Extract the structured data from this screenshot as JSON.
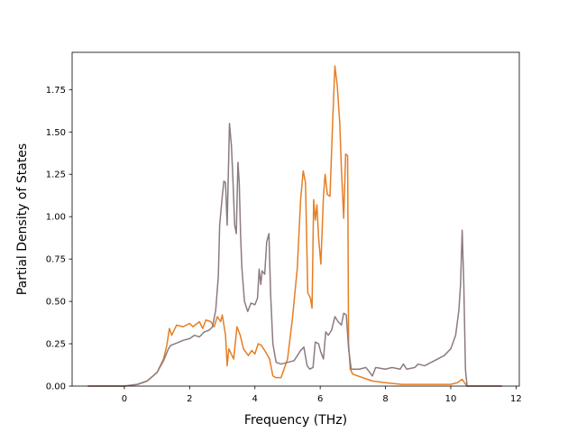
{
  "chart_data": {
    "type": "line",
    "title": "",
    "xlabel": "Frequency (THz)",
    "ylabel": "Partial Density of States",
    "xlim": [
      -1.6,
      12.1
    ],
    "ylim": [
      0.0,
      1.97
    ],
    "xticks": [
      0,
      2,
      4,
      6,
      8,
      10,
      12
    ],
    "yticks": [
      0.0,
      0.25,
      0.5,
      0.75,
      1.0,
      1.25,
      1.5,
      1.75
    ],
    "xtick_labels": [
      "0",
      "2",
      "4",
      "6",
      "8",
      "10",
      "12"
    ],
    "ytick_labels": [
      "0.00",
      "0.25",
      "0.50",
      "0.75",
      "1.00",
      "1.25",
      "1.50",
      "1.75"
    ],
    "grid": false,
    "legend": "none",
    "series": [
      {
        "color": "#e67e22",
        "points": [
          [
            -1.1,
            0.0
          ],
          [
            -0.2,
            0.0
          ],
          [
            0.0,
            0.0
          ],
          [
            0.4,
            0.01
          ],
          [
            0.7,
            0.03
          ],
          [
            1.0,
            0.08
          ],
          [
            1.2,
            0.16
          ],
          [
            1.3,
            0.24
          ],
          [
            1.38,
            0.34
          ],
          [
            1.45,
            0.3
          ],
          [
            1.6,
            0.36
          ],
          [
            1.8,
            0.35
          ],
          [
            2.0,
            0.37
          ],
          [
            2.1,
            0.35
          ],
          [
            2.3,
            0.38
          ],
          [
            2.4,
            0.34
          ],
          [
            2.5,
            0.39
          ],
          [
            2.65,
            0.38
          ],
          [
            2.75,
            0.35
          ],
          [
            2.85,
            0.41
          ],
          [
            2.95,
            0.38
          ],
          [
            3.0,
            0.42
          ],
          [
            3.1,
            0.3
          ],
          [
            3.15,
            0.12
          ],
          [
            3.2,
            0.22
          ],
          [
            3.35,
            0.16
          ],
          [
            3.45,
            0.35
          ],
          [
            3.55,
            0.3
          ],
          [
            3.65,
            0.22
          ],
          [
            3.8,
            0.18
          ],
          [
            3.9,
            0.21
          ],
          [
            4.0,
            0.19
          ],
          [
            4.1,
            0.25
          ],
          [
            4.2,
            0.24
          ],
          [
            4.3,
            0.21
          ],
          [
            4.45,
            0.16
          ],
          [
            4.55,
            0.06
          ],
          [
            4.65,
            0.05
          ],
          [
            4.8,
            0.05
          ],
          [
            5.0,
            0.16
          ],
          [
            5.15,
            0.4
          ],
          [
            5.3,
            0.7
          ],
          [
            5.4,
            1.1
          ],
          [
            5.48,
            1.27
          ],
          [
            5.55,
            1.2
          ],
          [
            5.62,
            0.55
          ],
          [
            5.7,
            0.52
          ],
          [
            5.75,
            0.46
          ],
          [
            5.8,
            1.1
          ],
          [
            5.85,
            0.98
          ],
          [
            5.9,
            1.07
          ],
          [
            5.95,
            0.88
          ],
          [
            6.02,
            0.72
          ],
          [
            6.1,
            1.12
          ],
          [
            6.15,
            1.25
          ],
          [
            6.22,
            1.13
          ],
          [
            6.3,
            1.12
          ],
          [
            6.38,
            1.55
          ],
          [
            6.45,
            1.89
          ],
          [
            6.52,
            1.78
          ],
          [
            6.6,
            1.55
          ],
          [
            6.65,
            1.28
          ],
          [
            6.72,
            0.99
          ],
          [
            6.78,
            1.37
          ],
          [
            6.84,
            1.36
          ],
          [
            6.87,
            0.25
          ],
          [
            6.92,
            0.1
          ],
          [
            7.0,
            0.07
          ],
          [
            7.3,
            0.05
          ],
          [
            7.6,
            0.03
          ],
          [
            8.0,
            0.02
          ],
          [
            8.5,
            0.01
          ],
          [
            9.0,
            0.01
          ],
          [
            9.5,
            0.01
          ],
          [
            10.0,
            0.01
          ],
          [
            10.2,
            0.02
          ],
          [
            10.35,
            0.04
          ],
          [
            10.42,
            0.02
          ],
          [
            10.5,
            0.0
          ],
          [
            11.55,
            0.0
          ]
        ]
      },
      {
        "color": "#8c7b80",
        "points": [
          [
            -1.1,
            0.0
          ],
          [
            -0.2,
            0.0
          ],
          [
            0.0,
            0.0
          ],
          [
            0.4,
            0.01
          ],
          [
            0.7,
            0.03
          ],
          [
            1.0,
            0.08
          ],
          [
            1.2,
            0.15
          ],
          [
            1.35,
            0.22
          ],
          [
            1.42,
            0.24
          ],
          [
            1.55,
            0.25
          ],
          [
            1.8,
            0.27
          ],
          [
            2.0,
            0.28
          ],
          [
            2.15,
            0.3
          ],
          [
            2.3,
            0.29
          ],
          [
            2.45,
            0.32
          ],
          [
            2.6,
            0.33
          ],
          [
            2.7,
            0.35
          ],
          [
            2.8,
            0.45
          ],
          [
            2.88,
            0.65
          ],
          [
            2.92,
            0.95
          ],
          [
            3.0,
            1.12
          ],
          [
            3.05,
            1.21
          ],
          [
            3.1,
            1.2
          ],
          [
            3.15,
            0.95
          ],
          [
            3.22,
            1.55
          ],
          [
            3.28,
            1.42
          ],
          [
            3.32,
            1.25
          ],
          [
            3.38,
            0.95
          ],
          [
            3.43,
            0.9
          ],
          [
            3.48,
            1.32
          ],
          [
            3.52,
            1.2
          ],
          [
            3.56,
            0.9
          ],
          [
            3.6,
            0.7
          ],
          [
            3.68,
            0.5
          ],
          [
            3.78,
            0.44
          ],
          [
            3.88,
            0.49
          ],
          [
            4.0,
            0.48
          ],
          [
            4.08,
            0.52
          ],
          [
            4.13,
            0.69
          ],
          [
            4.18,
            0.6
          ],
          [
            4.22,
            0.68
          ],
          [
            4.3,
            0.66
          ],
          [
            4.36,
            0.85
          ],
          [
            4.43,
            0.9
          ],
          [
            4.48,
            0.55
          ],
          [
            4.55,
            0.25
          ],
          [
            4.65,
            0.14
          ],
          [
            4.8,
            0.13
          ],
          [
            5.0,
            0.14
          ],
          [
            5.2,
            0.15
          ],
          [
            5.4,
            0.21
          ],
          [
            5.5,
            0.23
          ],
          [
            5.6,
            0.12
          ],
          [
            5.68,
            0.1
          ],
          [
            5.78,
            0.11
          ],
          [
            5.85,
            0.26
          ],
          [
            5.95,
            0.25
          ],
          [
            6.02,
            0.2
          ],
          [
            6.1,
            0.16
          ],
          [
            6.17,
            0.32
          ],
          [
            6.25,
            0.3
          ],
          [
            6.35,
            0.33
          ],
          [
            6.45,
            0.41
          ],
          [
            6.55,
            0.38
          ],
          [
            6.65,
            0.36
          ],
          [
            6.72,
            0.43
          ],
          [
            6.8,
            0.42
          ],
          [
            6.87,
            0.22
          ],
          [
            6.95,
            0.1
          ],
          [
            7.2,
            0.1
          ],
          [
            7.4,
            0.11
          ],
          [
            7.6,
            0.06
          ],
          [
            7.7,
            0.11
          ],
          [
            8.0,
            0.1
          ],
          [
            8.2,
            0.11
          ],
          [
            8.45,
            0.1
          ],
          [
            8.55,
            0.13
          ],
          [
            8.65,
            0.1
          ],
          [
            8.9,
            0.11
          ],
          [
            9.0,
            0.13
          ],
          [
            9.2,
            0.12
          ],
          [
            9.5,
            0.15
          ],
          [
            9.8,
            0.18
          ],
          [
            10.0,
            0.22
          ],
          [
            10.15,
            0.3
          ],
          [
            10.25,
            0.45
          ],
          [
            10.3,
            0.6
          ],
          [
            10.35,
            0.92
          ],
          [
            10.4,
            0.6
          ],
          [
            10.45,
            0.1
          ],
          [
            10.5,
            0.0
          ],
          [
            11.55,
            0.0
          ]
        ]
      }
    ]
  }
}
